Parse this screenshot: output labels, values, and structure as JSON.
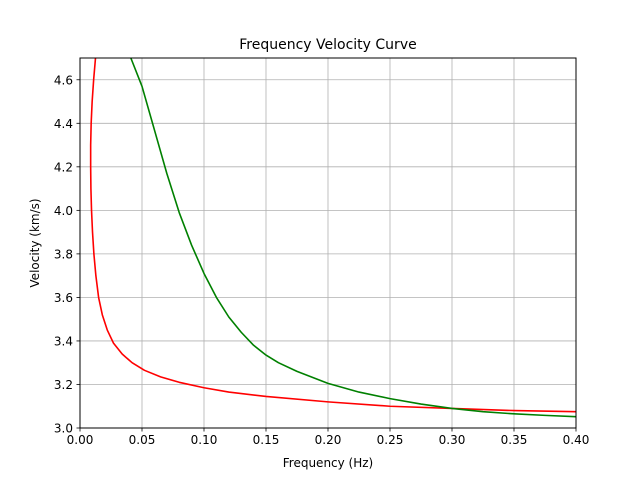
{
  "chart_data": {
    "type": "line",
    "title": "Frequency Velocity Curve",
    "xlabel": "Frequency (Hz)",
    "ylabel": "Velocity (km/s)",
    "xlim": [
      0.0,
      0.4
    ],
    "ylim": [
      3.0,
      4.7
    ],
    "x_ticks": [
      0.0,
      0.05,
      0.1,
      0.15,
      0.2,
      0.25,
      0.3,
      0.35,
      0.4
    ],
    "x_tick_labels": [
      "0.00",
      "0.05",
      "0.10",
      "0.15",
      "0.20",
      "0.25",
      "0.30",
      "0.35",
      "0.40"
    ],
    "y_ticks": [
      3.0,
      3.2,
      3.4,
      3.6,
      3.8,
      4.0,
      4.2,
      4.4,
      4.6
    ],
    "y_tick_labels": [
      "3.0",
      "3.2",
      "3.4",
      "3.6",
      "3.8",
      "4.0",
      "4.2",
      "4.4",
      "4.6"
    ],
    "grid": true,
    "legend": "none",
    "series": [
      {
        "color": "#ff0000",
        "x": [
          0.0125,
          0.011,
          0.0098,
          0.009,
          0.0086,
          0.0086,
          0.0088,
          0.0093,
          0.0101,
          0.0112,
          0.0128,
          0.015,
          0.018,
          0.022,
          0.027,
          0.034,
          0.042,
          0.052,
          0.065,
          0.08,
          0.1,
          0.12,
          0.15,
          0.2,
          0.25,
          0.3,
          0.35,
          0.4
        ],
        "y": [
          4.7,
          4.6,
          4.5,
          4.4,
          4.3,
          4.2,
          4.1,
          4.0,
          3.9,
          3.8,
          3.7,
          3.6,
          3.52,
          3.45,
          3.39,
          3.34,
          3.3,
          3.265,
          3.235,
          3.21,
          3.185,
          3.165,
          3.145,
          3.12,
          3.1,
          3.09,
          3.08,
          3.075
        ]
      },
      {
        "color": "#008000",
        "x": [
          0.041,
          0.05,
          0.06,
          0.07,
          0.08,
          0.09,
          0.1,
          0.11,
          0.12,
          0.13,
          0.14,
          0.15,
          0.16,
          0.175,
          0.2,
          0.225,
          0.25,
          0.275,
          0.3,
          0.325,
          0.35,
          0.375,
          0.4
        ],
        "y": [
          4.7,
          4.57,
          4.37,
          4.17,
          3.99,
          3.84,
          3.71,
          3.6,
          3.51,
          3.44,
          3.38,
          3.335,
          3.3,
          3.26,
          3.205,
          3.165,
          3.135,
          3.11,
          3.09,
          3.075,
          3.065,
          3.058,
          3.052
        ]
      }
    ]
  }
}
